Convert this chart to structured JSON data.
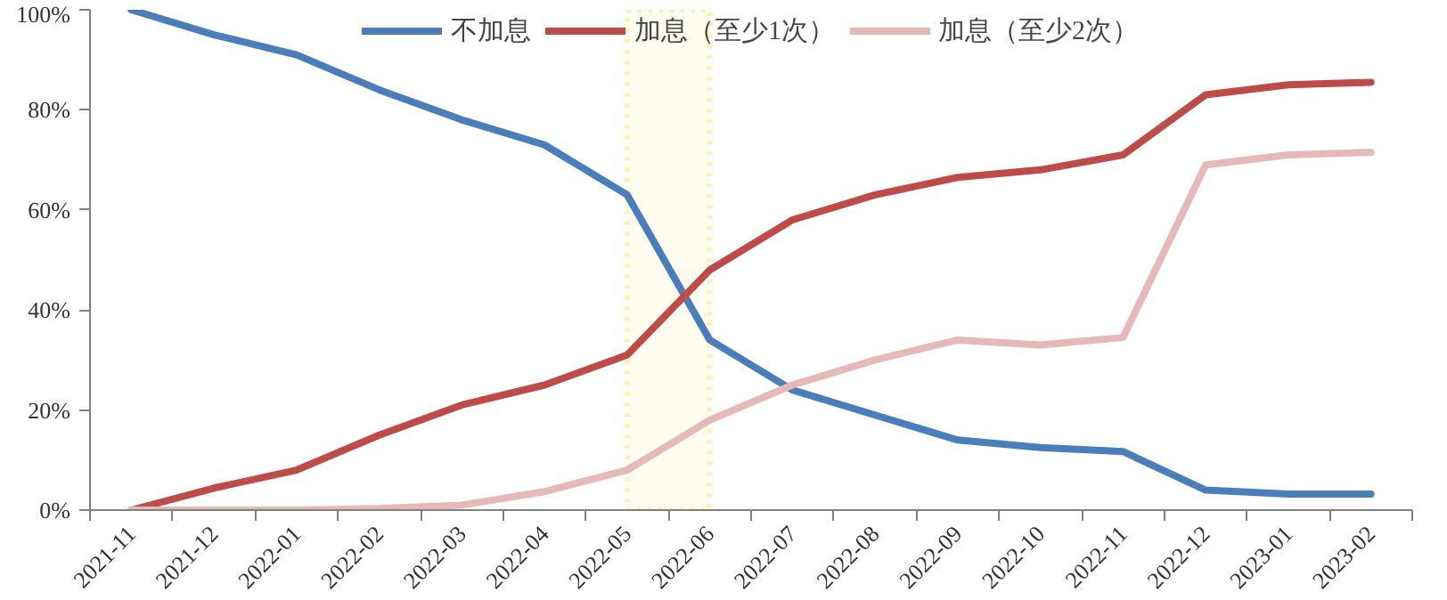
{
  "chart_data": {
    "type": "line",
    "categories": [
      "2021-11",
      "2021-12",
      "2022-01",
      "2022-02",
      "2022-03",
      "2022-04",
      "2022-05",
      "2022-06",
      "2022-07",
      "2022-08",
      "2022-09",
      "2022-10",
      "2022-11",
      "2022-12",
      "2023-01",
      "2023-02"
    ],
    "series": [
      {
        "name": "不加息",
        "color": "#4a7ebb",
        "values": [
          100,
          95,
          91,
          84,
          78,
          73,
          63,
          34,
          24,
          19,
          14,
          12.5,
          11.7,
          4,
          3.2,
          3.2
        ]
      },
      {
        "name": "加息（至少1次）",
        "color": "#be4b48",
        "values": [
          0,
          4.4,
          8,
          15,
          21,
          25,
          31,
          48,
          58,
          63,
          66.5,
          68,
          71,
          83,
          85,
          85.5
        ]
      },
      {
        "name": "加息（至少2次）",
        "color": "#e6b9b8",
        "values": [
          0,
          0,
          0,
          0.3,
          1,
          3.7,
          8,
          18,
          25,
          30,
          34,
          33,
          34.5,
          69,
          71,
          71.5
        ]
      }
    ],
    "ylim": [
      0,
      100
    ],
    "yticks": [
      {
        "value": 0,
        "label": "0%"
      },
      {
        "value": 20,
        "label": "20%"
      },
      {
        "value": 40,
        "label": "40%"
      },
      {
        "value": 60,
        "label": "60%"
      },
      {
        "value": 80,
        "label": "80%"
      },
      {
        "value": 100,
        "label": "100%"
      }
    ],
    "bands": [
      {
        "axis": "x",
        "from": "2022-05",
        "to": "2022-06",
        "color": "#f2d600"
      }
    ],
    "grid": false,
    "legend": "top",
    "marker": "none",
    "line_style": "solid"
  }
}
